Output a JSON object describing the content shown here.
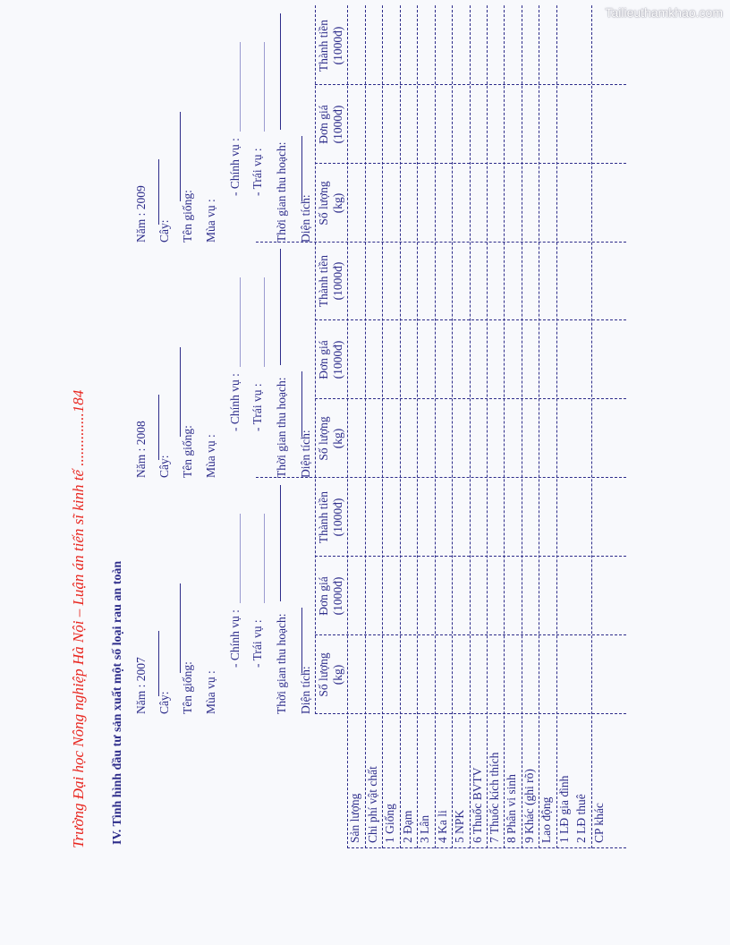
{
  "watermark": "Tailieuthamkhao.com",
  "header": "Trường Đại học Nông nghiệp Hà Nội – Luận án tiến sĩ kinh tế ..............184",
  "section_title": "IV. Tình hình đầu tư sản xuất một số loại rau an toàn",
  "years": [
    {
      "year_label": "Năm : 2007"
    },
    {
      "year_label": "Năm : 2008"
    },
    {
      "year_label": "Năm : 2009"
    }
  ],
  "labels": {
    "cay": "Cây:",
    "ten_giong": "Tên giống:",
    "mua_vu": "Mùa vụ :",
    "chinh_vu": "- Chính vụ :",
    "trai_vu": "-  Trái vụ   :",
    "thoi_gian": "Thời gian thu hoạch:",
    "dien_tich": "Diện tích:"
  },
  "column_headers": [
    {
      "line1": "Số lượng",
      "line2": "(kg)"
    },
    {
      "line1": "Đơn giá",
      "line2": "(1000đ)"
    },
    {
      "line1": "Thành tiền",
      "line2": "(1000đ)"
    }
  ],
  "rows": [
    "Sản lượng",
    "Chi phí vật chất",
    "1 Giống",
    "2 Đạm",
    "3 Lân",
    "4 Ka li",
    "5 NPK",
    "6 Thuốc BVTV",
    "7 Thuốc kích thích",
    "8 Phân vi sinh",
    "9 Khác (ghi rõ)",
    "Lao động",
    "1 LĐ gia đình",
    "2 LĐ thuê",
    "CP khác"
  ],
  "colors": {
    "header": "#e8261f",
    "text": "#2d2c8a"
  }
}
